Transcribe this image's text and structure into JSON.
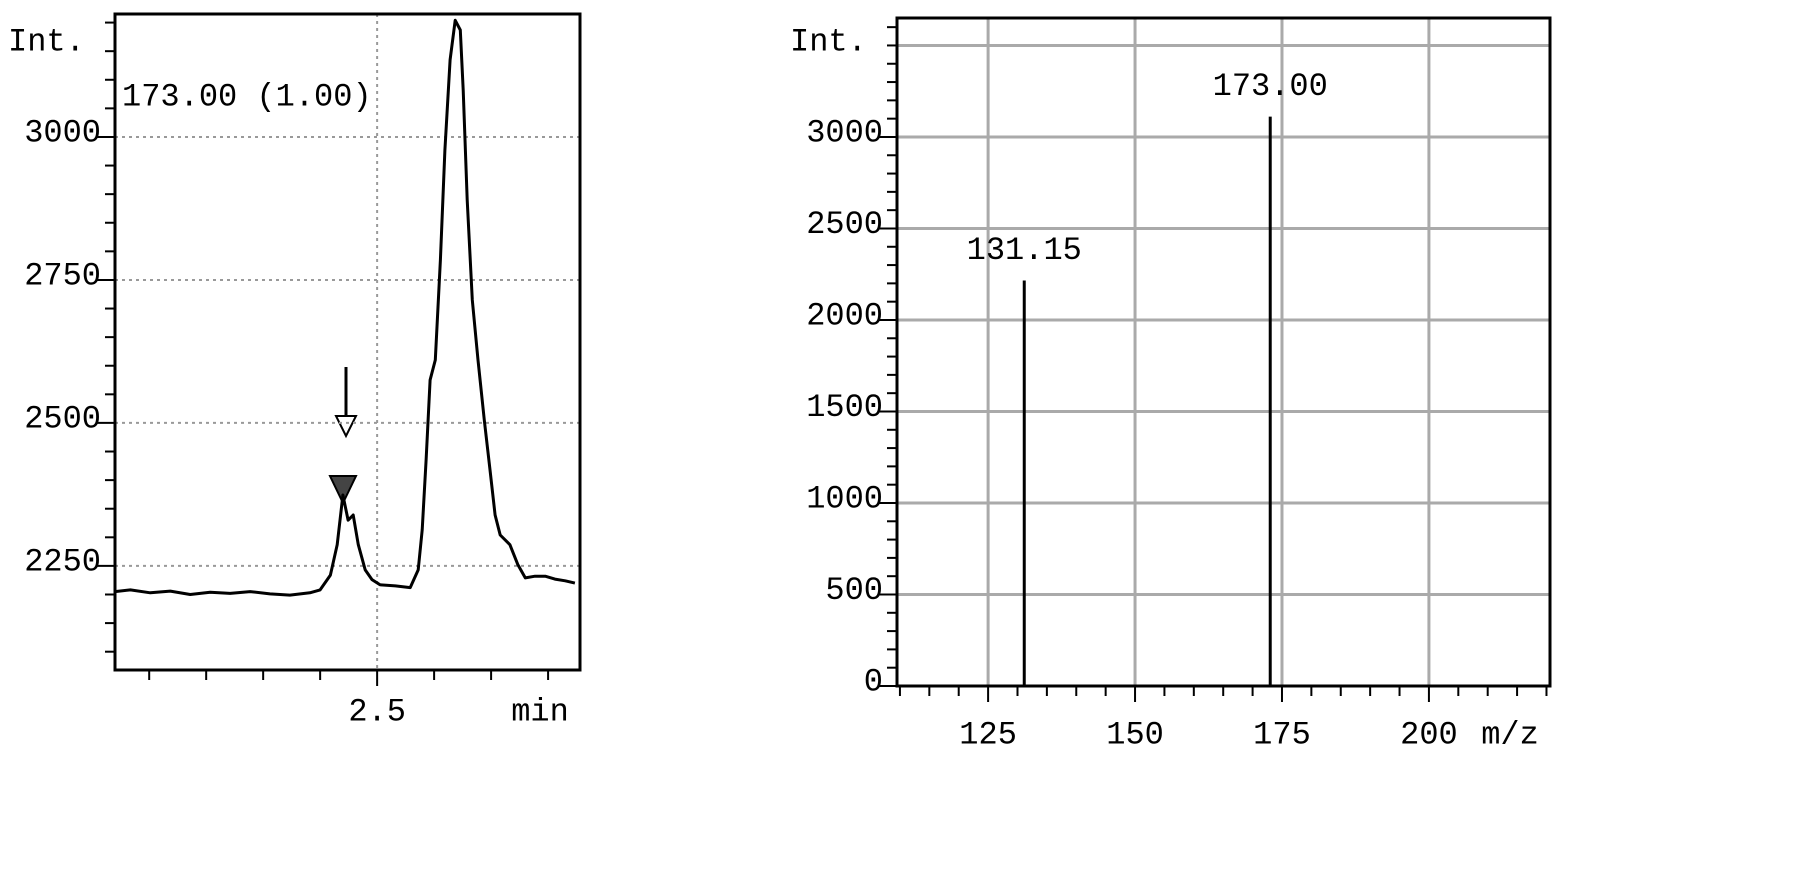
{
  "chart_data": [
    {
      "type": "line",
      "y_label": "Int.",
      "x_label": "min",
      "annotation": "173.00 (1.00)",
      "x": [
        2.04,
        2.067,
        2.102,
        2.137,
        2.172,
        2.207,
        2.242,
        2.277,
        2.312,
        2.347,
        2.382,
        2.4,
        2.418,
        2.43,
        2.44,
        2.449,
        2.458,
        2.467,
        2.479,
        2.491,
        2.505,
        2.532,
        2.558,
        2.572,
        2.579,
        2.586,
        2.593,
        2.602,
        2.611,
        2.619,
        2.628,
        2.637,
        2.646,
        2.651,
        2.658,
        2.667,
        2.677,
        2.688,
        2.698,
        2.707,
        2.716,
        2.733,
        2.747,
        2.76,
        2.777,
        2.795,
        2.812,
        2.83,
        2.847
      ],
      "values": [
        2205,
        2208,
        2203,
        2206,
        2200,
        2204,
        2202,
        2205,
        2201,
        2199,
        2203,
        2208,
        2234,
        2287,
        2374,
        2330,
        2339,
        2287,
        2243,
        2226,
        2217,
        2215,
        2212,
        2243,
        2313,
        2435,
        2575,
        2610,
        2785,
        2977,
        3135,
        3204,
        3187,
        3082,
        2890,
        2715,
        2610,
        2505,
        2418,
        2339,
        2304,
        2287,
        2252,
        2229,
        2232,
        2232,
        2227,
        2224,
        2220
      ],
      "color": "#000000",
      "xlim": [
        2.04,
        2.856
      ],
      "ylim": [
        2068,
        3215
      ],
      "xticks": [
        2.5
      ],
      "yticks": [
        2250,
        2500,
        2750,
        3000
      ],
      "xminorticks": [
        2.1,
        2.2,
        2.3,
        2.4,
        2.6,
        2.7,
        2.8
      ],
      "yminorticks": [
        2100,
        2150,
        2200,
        2300,
        2350,
        2400,
        2450,
        2550,
        2600,
        2650,
        2700,
        2800,
        2850,
        2900,
        2950,
        3050,
        3100,
        3150,
        3200
      ],
      "grid": "dotted"
    },
    {
      "type": "bar",
      "y_label": "Int.",
      "x_label": "m/z",
      "x": [
        131.15,
        173
      ],
      "x_labels": [
        "131.15",
        "173.00"
      ],
      "values": [
        2216,
        3111
      ],
      "color": "#000000",
      "xlim": [
        109.5,
        220.6
      ],
      "ylim": [
        0,
        3650
      ],
      "xticks": [
        125,
        150,
        175,
        200
      ],
      "yticks": [
        0,
        500,
        1000,
        1500,
        2000,
        2500,
        3000
      ],
      "ygrid": [
        500,
        1000,
        1500,
        2000,
        2500,
        3000,
        3500
      ],
      "xminorticks": [
        110,
        115,
        120,
        130,
        135,
        140,
        145,
        155,
        160,
        165,
        170,
        180,
        185,
        190,
        195,
        205,
        210,
        215,
        220
      ],
      "yminorticks": [
        100,
        200,
        300,
        400,
        600,
        700,
        800,
        900,
        1100,
        1200,
        1300,
        1400,
        1600,
        1700,
        1800,
        1900,
        2100,
        2200,
        2300,
        2400,
        2600,
        2700,
        2800,
        2900,
        3100,
        3200,
        3300,
        3400,
        3500,
        3600
      ],
      "grid": "solid"
    }
  ]
}
